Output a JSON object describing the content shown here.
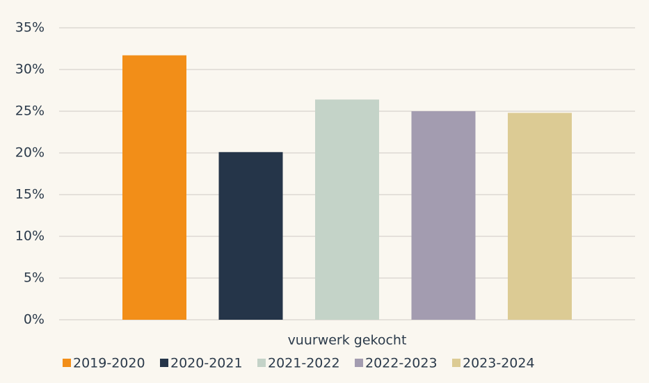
{
  "chart_data": {
    "type": "bar",
    "categories": [
      "vuurwerk gekocht"
    ],
    "series": [
      {
        "name": "2019-2020",
        "color": "#f28e18",
        "values": [
          31.7
        ]
      },
      {
        "name": "2020-2021",
        "color": "#253549",
        "values": [
          20.1
        ]
      },
      {
        "name": "2021-2022",
        "color": "#c4d3c8",
        "values": [
          26.4
        ]
      },
      {
        "name": "2022-2023",
        "color": "#a39cb0",
        "values": [
          25.0
        ]
      },
      {
        "name": "2023-2024",
        "color": "#dccb94",
        "values": [
          24.8
        ]
      }
    ],
    "ylim": [
      0,
      35
    ],
    "yticks": [
      {
        "value": 0,
        "label": "0%"
      },
      {
        "value": 5,
        "label": "5%"
      },
      {
        "value": 10,
        "label": "10%"
      },
      {
        "value": 15,
        "label": "15%"
      },
      {
        "value": 20,
        "label": "20%"
      },
      {
        "value": 25,
        "label": "25%"
      },
      {
        "value": 30,
        "label": "30%"
      },
      {
        "value": 35,
        "label": "35%"
      }
    ],
    "grid": true,
    "legend": "bottom"
  }
}
